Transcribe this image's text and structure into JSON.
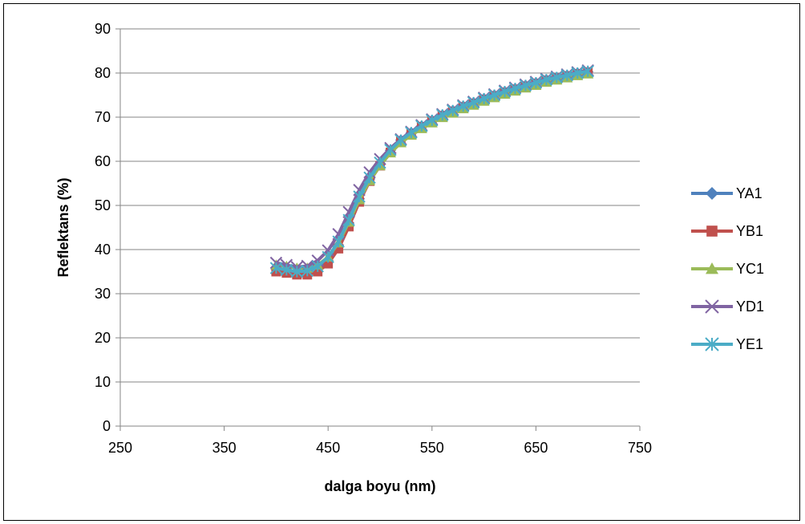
{
  "chart_data": {
    "type": "scatter",
    "title": "",
    "xlabel": "dalga boyu (nm)",
    "ylabel": "Reflektans (%)",
    "xlim": [
      250,
      750
    ],
    "ylim": [
      0,
      90
    ],
    "xticks": [
      250,
      350,
      450,
      550,
      650,
      750
    ],
    "yticks": [
      0,
      10,
      20,
      30,
      40,
      50,
      60,
      70,
      80,
      90
    ],
    "grid": "horizontal",
    "legend_position": "right",
    "x": [
      400,
      410,
      420,
      430,
      440,
      450,
      460,
      470,
      480,
      490,
      500,
      510,
      520,
      530,
      540,
      550,
      560,
      570,
      580,
      590,
      600,
      610,
      620,
      630,
      640,
      650,
      660,
      670,
      680,
      690,
      700
    ],
    "series": [
      {
        "name": "YA1",
        "color": "#4F81BD",
        "marker": "diamond",
        "values": [
          35.5,
          35.2,
          34.8,
          34.8,
          35.6,
          37.5,
          41.0,
          46.0,
          51.5,
          56.0,
          59.5,
          62.5,
          64.8,
          66.5,
          68.0,
          69.3,
          70.5,
          71.5,
          72.5,
          73.3,
          74.2,
          75.0,
          75.8,
          76.5,
          77.2,
          77.8,
          78.5,
          79.0,
          79.5,
          80.0,
          80.3
        ]
      },
      {
        "name": "YB1",
        "color": "#C0504D",
        "marker": "square",
        "values": [
          35.0,
          34.7,
          34.3,
          34.3,
          35.0,
          36.8,
          40.2,
          45.2,
          50.8,
          55.5,
          59.0,
          62.0,
          64.5,
          66.2,
          67.8,
          69.1,
          70.3,
          71.3,
          72.3,
          73.1,
          74.0,
          74.8,
          75.6,
          76.3,
          77.0,
          77.6,
          78.3,
          78.8,
          79.3,
          79.8,
          80.2
        ]
      },
      {
        "name": "YC1",
        "color": "#9BBB59",
        "marker": "triangle",
        "values": [
          36.5,
          36.2,
          35.8,
          35.8,
          36.5,
          38.3,
          41.5,
          46.2,
          51.3,
          55.6,
          59.0,
          61.9,
          64.2,
          65.9,
          67.4,
          68.7,
          69.9,
          70.9,
          71.9,
          72.7,
          73.6,
          74.4,
          75.2,
          75.9,
          76.6,
          77.2,
          77.9,
          78.4,
          78.9,
          79.4,
          79.8
        ]
      },
      {
        "name": "YD1",
        "color": "#8064A2",
        "marker": "x",
        "values": [
          37.0,
          36.5,
          36.0,
          36.3,
          37.5,
          39.8,
          43.5,
          48.5,
          53.5,
          57.5,
          60.5,
          63.0,
          65.0,
          66.7,
          68.2,
          69.5,
          70.7,
          71.7,
          72.7,
          73.5,
          74.4,
          75.2,
          76.0,
          76.7,
          77.4,
          78.0,
          78.7,
          79.2,
          79.7,
          80.2,
          80.6
        ]
      },
      {
        "name": "YE1",
        "color": "#4BACC6",
        "marker": "asterisk",
        "values": [
          35.8,
          35.4,
          35.0,
          35.2,
          36.2,
          38.3,
          41.8,
          46.7,
          52.0,
          56.3,
          59.7,
          62.6,
          64.8,
          66.5,
          68.0,
          69.3,
          70.5,
          71.5,
          72.5,
          73.3,
          74.2,
          75.0,
          75.8,
          76.5,
          77.2,
          77.8,
          78.5,
          79.0,
          79.5,
          80.0,
          80.4
        ]
      }
    ]
  }
}
